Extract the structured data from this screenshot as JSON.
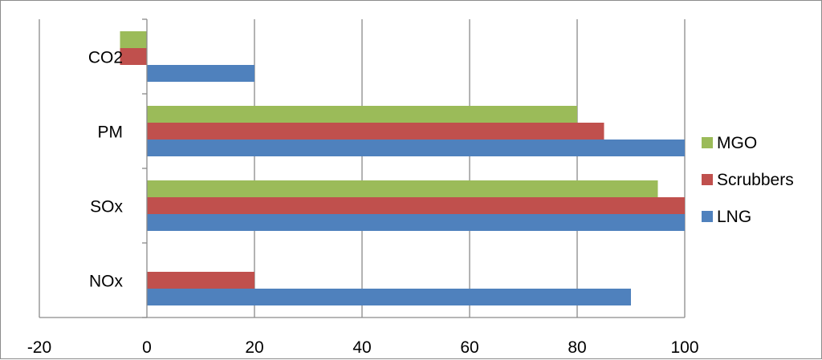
{
  "chart_data": {
    "type": "bar",
    "orientation": "horizontal",
    "title": "",
    "xlabel": "",
    "ylabel": "",
    "xlim": [
      -20,
      100
    ],
    "x_ticks": [
      -20,
      0,
      20,
      40,
      60,
      80,
      100
    ],
    "grid": "vertical major gridlines",
    "legend_position": "right",
    "categories": [
      "NOx",
      "SOx",
      "PM",
      "CO2"
    ],
    "series": [
      {
        "name": "LNG",
        "color": "#4f81bd",
        "values": [
          90,
          100,
          100,
          20
        ]
      },
      {
        "name": "Scrubbers",
        "color": "#c0504d",
        "values": [
          20,
          100,
          85,
          -5
        ]
      },
      {
        "name": "MGO",
        "color": "#9bbb59",
        "values": [
          null,
          95,
          80,
          -5
        ]
      }
    ]
  }
}
